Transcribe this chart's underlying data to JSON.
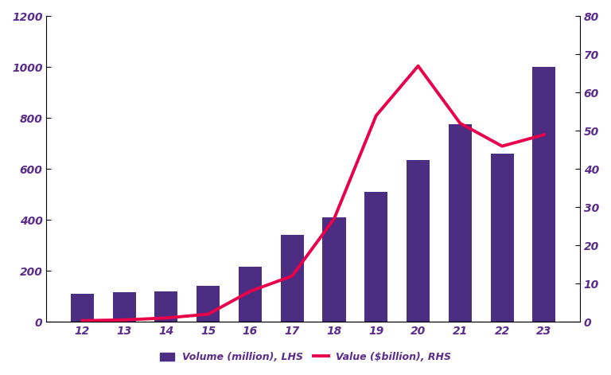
{
  "years": [
    12,
    13,
    14,
    15,
    16,
    17,
    18,
    19,
    20,
    21,
    22,
    23
  ],
  "volume_million": [
    110,
    115,
    120,
    140,
    215,
    340,
    410,
    510,
    635,
    775,
    660,
    1000
  ],
  "value_billion": [
    0.3,
    0.5,
    1.0,
    2.0,
    8.0,
    12.0,
    27.0,
    54.0,
    67.0,
    52.0,
    46.0,
    49.0
  ],
  "bar_color": "#4B2D82",
  "line_color": "#E8004A",
  "ylim_left": [
    0,
    1200
  ],
  "ylim_right": [
    0,
    80
  ],
  "yticks_left": [
    0,
    200,
    400,
    600,
    800,
    1000,
    1200
  ],
  "yticks_right": [
    0,
    10,
    20,
    30,
    40,
    50,
    60,
    70,
    80
  ],
  "legend_volume": "Volume (million), LHS",
  "legend_value": "Value ($billion), RHS",
  "background_color": "#ffffff",
  "line_width": 2.8,
  "tick_label_color": "#5B2C8D",
  "spine_color": "#000000",
  "tick_fontsize": 10
}
